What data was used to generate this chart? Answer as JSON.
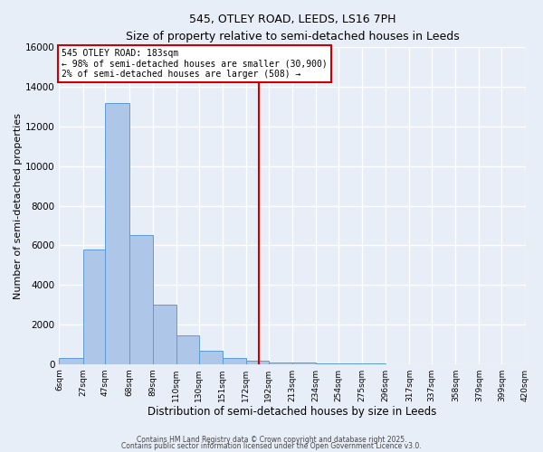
{
  "title": "545, OTLEY ROAD, LEEDS, LS16 7PH",
  "subtitle": "Size of property relative to semi-detached houses in Leeds",
  "xlabel": "Distribution of semi-detached houses by size in Leeds",
  "ylabel": "Number of semi-detached properties",
  "bar_color": "#aec6e8",
  "bar_edge_color": "#5b9bd5",
  "vline_x": 183,
  "vline_color": "#cc0000",
  "annotation_title": "545 OTLEY ROAD: 183sqm",
  "annotation_line1": "← 98% of semi-detached houses are smaller (30,900)",
  "annotation_line2": "2% of semi-detached houses are larger (508) →",
  "annotation_box_color": "#cc0000",
  "bin_edges": [
    6,
    27,
    47,
    68,
    89,
    110,
    130,
    151,
    172,
    192,
    213,
    234,
    254,
    275,
    296,
    317,
    337,
    358,
    379,
    399,
    420
  ],
  "bin_counts": [
    300,
    5800,
    13200,
    6500,
    3000,
    1450,
    650,
    300,
    150,
    100,
    60,
    40,
    20,
    10,
    5,
    3,
    2,
    1,
    1,
    0
  ],
  "ylim": [
    0,
    16000
  ],
  "yticks": [
    0,
    2000,
    4000,
    6000,
    8000,
    10000,
    12000,
    14000,
    16000
  ],
  "background_color": "#e8eef7",
  "grid_color": "#ffffff",
  "tick_labels": [
    "6sqm",
    "27sqm",
    "47sqm",
    "68sqm",
    "89sqm",
    "110sqm",
    "130sqm",
    "151sqm",
    "172sqm",
    "192sqm",
    "213sqm",
    "234sqm",
    "254sqm",
    "275sqm",
    "296sqm",
    "317sqm",
    "337sqm",
    "358sqm",
    "379sqm",
    "399sqm",
    "420sqm"
  ],
  "footer1": "Contains HM Land Registry data © Crown copyright and database right 2025.",
  "footer2": "Contains public sector information licensed under the Open Government Licence v3.0."
}
